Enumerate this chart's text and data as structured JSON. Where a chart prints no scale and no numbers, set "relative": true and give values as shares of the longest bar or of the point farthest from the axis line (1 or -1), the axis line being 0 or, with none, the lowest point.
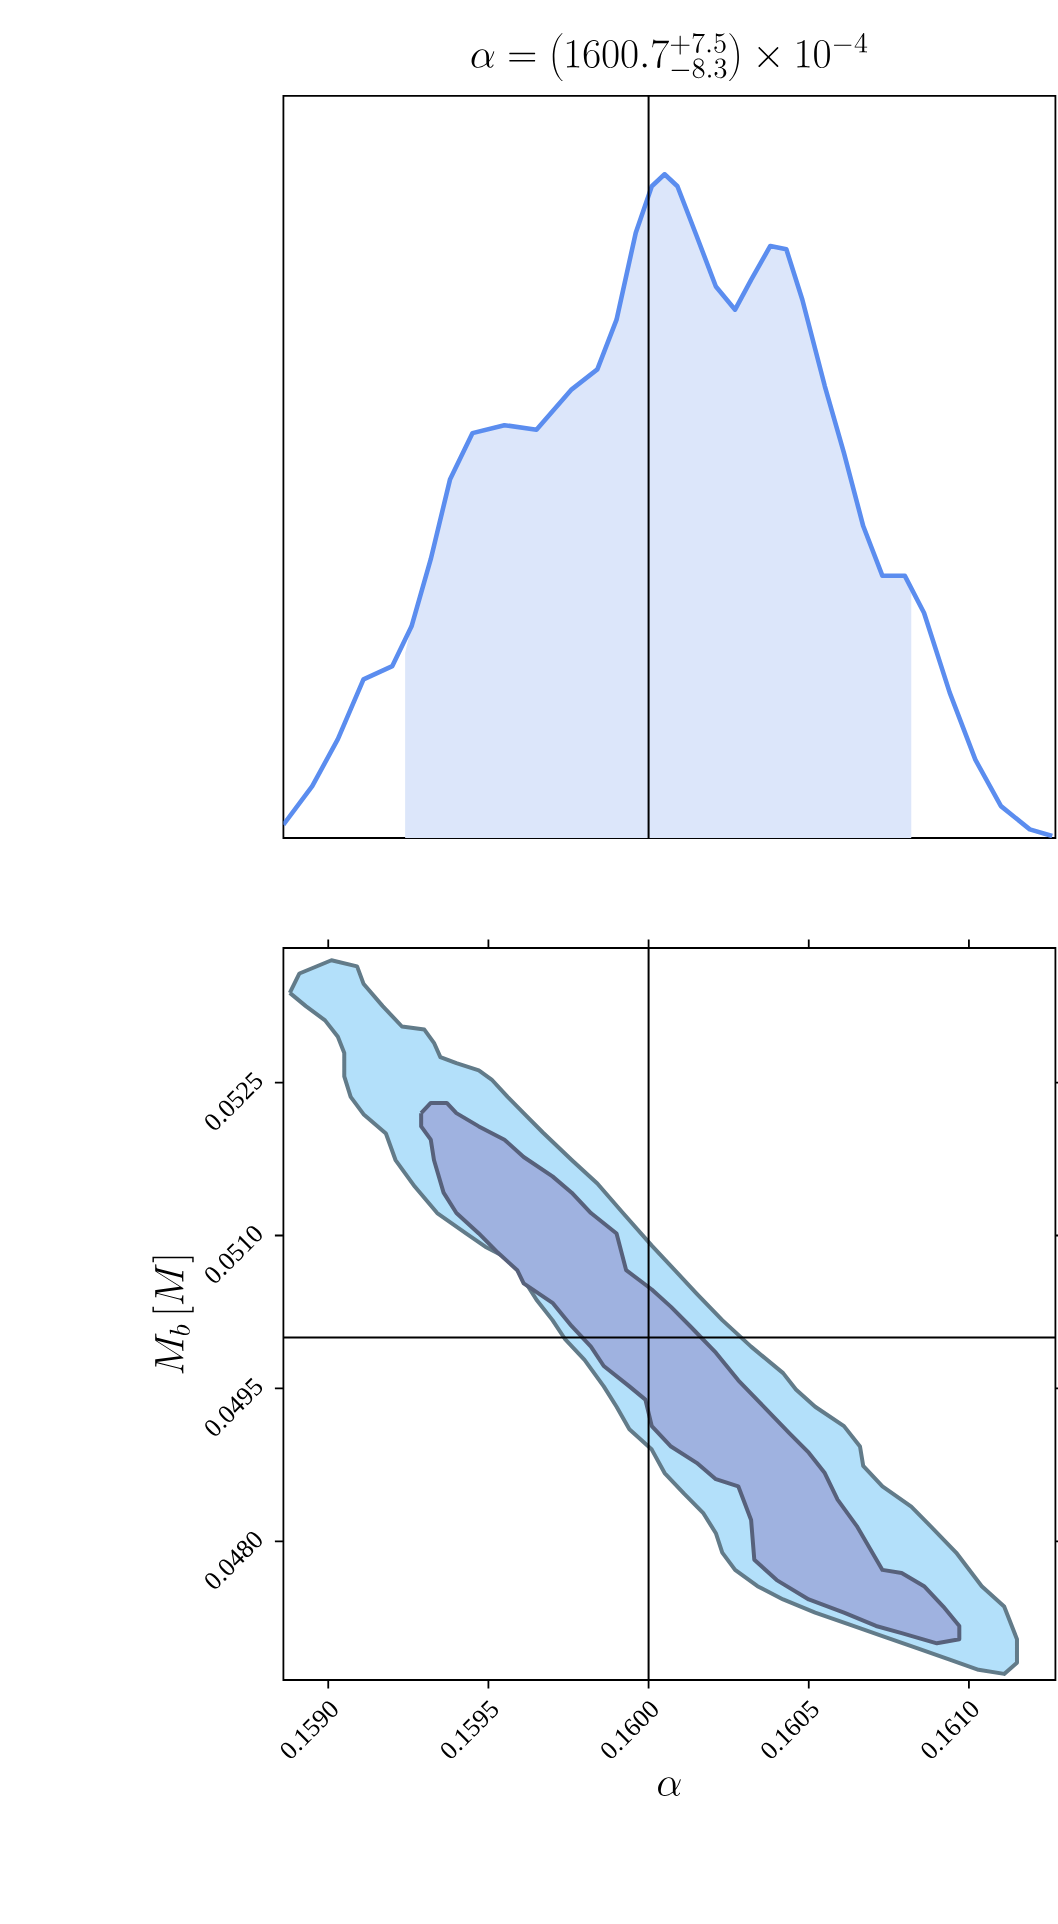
{
  "chart_data": [
    {
      "type": "line",
      "title": "\\alpha = \\left(1600.7^{+7.5}_{-8.3}\\right) \\times 10^{-4}",
      "relative": true,
      "xlim": [
        0.15886,
        0.16127
      ],
      "tick_labels": false,
      "series": [
        {
          "type": "area",
          "color": "#dce6fa",
          "x": [
            0.15924,
            0.15926,
            0.15932,
            0.15938,
            0.15945,
            0.15955,
            0.15965,
            0.15976,
            0.15984,
            0.1599,
            0.15996,
            0.16001,
            0.16005,
            0.16009,
            0.16015,
            0.16021,
            0.16027,
            0.16032,
            0.16038,
            0.16043,
            0.16048,
            0.16055,
            0.16061,
            0.16067,
            0.16073,
            0.1608,
            0.16082
          ],
          "values": [
            0.279,
            0.319,
            0.42,
            0.54,
            0.61,
            0.622,
            0.615,
            0.676,
            0.706,
            0.781,
            0.912,
            0.982,
            1,
            0.982,
            0.907,
            0.831,
            0.796,
            0.841,
            0.892,
            0.887,
            0.811,
            0.681,
            0.58,
            0.47,
            0.395,
            0.395,
            0.38
          ]
        },
        {
          "color": "#5b8def",
          "x": [
            0.15886,
            0.15895,
            0.15903,
            0.15911,
            0.1592,
            0.15926,
            0.15932,
            0.15938,
            0.15945,
            0.15955,
            0.15965,
            0.15976,
            0.15984,
            0.1599,
            0.15996,
            0.16001,
            0.16005,
            0.16009,
            0.16015,
            0.16021,
            0.16027,
            0.16032,
            0.16038,
            0.16043,
            0.16048,
            0.16055,
            0.16061,
            0.16067,
            0.16073,
            0.1608,
            0.16086,
            0.16094,
            0.16102,
            0.1611,
            0.16119,
            0.16126
          ],
          "values": [
            0.02,
            0.078,
            0.149,
            0.239,
            0.259,
            0.319,
            0.42,
            0.54,
            0.61,
            0.622,
            0.615,
            0.676,
            0.706,
            0.781,
            0.912,
            0.982,
            1,
            0.982,
            0.907,
            0.831,
            0.796,
            0.841,
            0.892,
            0.887,
            0.811,
            0.681,
            0.58,
            0.47,
            0.395,
            0.395,
            0.339,
            0.219,
            0.118,
            0.048,
            0.013,
            0.003
          ]
        }
      ],
      "ref_lines": [
        {
          "axis": "x",
          "value": 0.16
        }
      ]
    },
    {
      "type": "area",
      "xlabel": "\\alpha",
      "ylabel": "M_b\\,[M]",
      "xlim": [
        0.15886,
        0.16127
      ],
      "ylim": [
        0.04664,
        0.05382
      ],
      "xticks": [
        {
          "value": 0.159,
          "label": "0.1590"
        },
        {
          "value": 0.1595,
          "label": "0.1595"
        },
        {
          "value": 0.16,
          "label": "0.1600"
        },
        {
          "value": 0.1605,
          "label": "0.1605"
        },
        {
          "value": 0.161,
          "label": "0.1610"
        }
      ],
      "yticks": [
        {
          "value": 0.048,
          "label": "0.0480"
        },
        {
          "value": 0.0495,
          "label": "0.0495"
        },
        {
          "value": 0.051,
          "label": "0.0510"
        },
        {
          "value": 0.0525,
          "label": "0.0525"
        }
      ],
      "series": [
        {
          "color": "#b3e0fa",
          "x": [
            0.15888,
            0.15891,
            0.15901,
            0.15909,
            0.15911,
            0.15917,
            0.15923,
            0.1593,
            0.15933,
            0.15935,
            0.1594,
            0.15947,
            0.15951,
            0.15956,
            0.15961,
            0.15967,
            0.15976,
            0.15984,
            0.15992,
            0.16001,
            0.16007,
            0.16015,
            0.16023,
            0.16032,
            0.16042,
            0.16046,
            0.16052,
            0.16061,
            0.16066,
            0.16067,
            0.16073,
            0.16082,
            0.16088,
            0.16096,
            0.16104,
            0.16111,
            0.16115,
            0.16115,
            0.16111,
            0.16103,
            0.16094,
            0.16084,
            0.16073,
            0.16063,
            0.16052,
            0.16042,
            0.16034,
            0.16027,
            0.16023,
            0.16021,
            0.16017,
            0.16011,
            0.16005,
            0.16001,
            0.15994,
            0.1599,
            0.15986,
            0.1598,
            0.15974,
            0.1597,
            0.15965,
            0.15961,
            0.15957,
            0.15949,
            0.15943,
            0.15934,
            0.15927,
            0.15921,
            0.15918,
            0.15911,
            0.15907,
            0.15905,
            0.15905,
            0.15903,
            0.15899,
            0.15893,
            0.15888
          ],
          "values": [
            0.05338,
            0.05357,
            0.0537,
            0.05364,
            0.05347,
            0.05325,
            0.05305,
            0.05302,
            0.05289,
            0.05275,
            0.05269,
            0.05262,
            0.05253,
            0.05236,
            0.0522,
            0.05201,
            0.05174,
            0.05151,
            0.05122,
            0.0509,
            0.0507,
            0.05043,
            0.05017,
            0.04991,
            0.04965,
            0.04949,
            0.04932,
            0.04913,
            0.04893,
            0.04874,
            0.04854,
            0.04834,
            0.04815,
            0.04789,
            0.04756,
            0.04736,
            0.04704,
            0.04681,
            0.0467,
            0.04674,
            0.04684,
            0.04695,
            0.04707,
            0.04718,
            0.0473,
            0.04743,
            0.04756,
            0.04772,
            0.04789,
            0.04808,
            0.04828,
            0.04847,
            0.04867,
            0.0489,
            0.0491,
            0.04932,
            0.04952,
            0.04978,
            0.04998,
            0.05017,
            0.05037,
            0.05057,
            0.05076,
            0.05089,
            0.05102,
            0.05122,
            0.05148,
            0.05174,
            0.052,
            0.05219,
            0.05236,
            0.05256,
            0.05279,
            0.05295,
            0.05311,
            0.05325,
            0.05338
          ]
        },
        {
          "color": "#9fb2e0",
          "x": [
            0.15929,
            0.15932,
            0.15937,
            0.1594,
            0.15947,
            0.15955,
            0.15961,
            0.1597,
            0.15976,
            0.15982,
            0.1599,
            0.15993,
            0.16001,
            0.16007,
            0.16013,
            0.16021,
            0.16028,
            0.16036,
            0.16044,
            0.1605,
            0.16055,
            0.16059,
            0.16065,
            0.16073,
            0.16079,
            0.16086,
            0.16092,
            0.16097,
            0.16097,
            0.1609,
            0.16079,
            0.16071,
            0.16061,
            0.1605,
            0.1604,
            0.16033,
            0.16032,
            0.16028,
            0.16021,
            0.16015,
            0.16007,
            0.16001,
            0.15999,
            0.15994,
            0.15986,
            0.15982,
            0.15976,
            0.1597,
            0.15961,
            0.15959,
            0.15953,
            0.15947,
            0.1594,
            0.15936,
            0.15933,
            0.15932,
            0.15929,
            0.15929
          ],
          "values": [
            0.0522,
            0.0523,
            0.0523,
            0.0522,
            0.05207,
            0.05194,
            0.05177,
            0.05158,
            0.05142,
            0.05122,
            0.05102,
            0.05066,
            0.05047,
            0.0503,
            0.05011,
            0.04985,
            0.04958,
            0.04932,
            0.04906,
            0.04887,
            0.04867,
            0.04841,
            0.04815,
            0.04772,
            0.04769,
            0.04756,
            0.04736,
            0.04717,
            0.04704,
            0.047,
            0.0471,
            0.04717,
            0.0473,
            0.04743,
            0.04762,
            0.04782,
            0.04821,
            0.04854,
            0.04861,
            0.04877,
            0.04893,
            0.04913,
            0.04939,
            0.04952,
            0.04972,
            0.04991,
            0.05011,
            0.05034,
            0.05053,
            0.05066,
            0.05083,
            0.05102,
            0.05122,
            0.05142,
            0.05174,
            0.05194,
            0.05207,
            0.0522
          ]
        }
      ],
      "ref_lines": [
        {
          "axis": "x",
          "value": 0.16
        },
        {
          "axis": "y",
          "value": 0.05
        }
      ]
    }
  ]
}
